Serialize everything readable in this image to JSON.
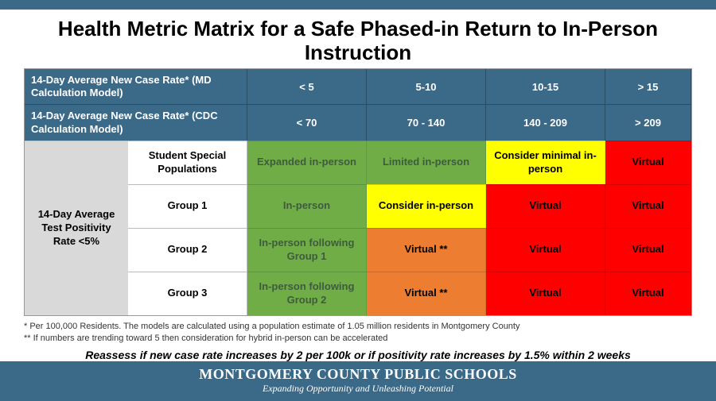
{
  "colors": {
    "brand_blue": "#3b6988",
    "gray": "#d9d9d9",
    "green": "#70ad47",
    "yellow": "#ffff00",
    "orange": "#ed7d31",
    "red": "#ff0000",
    "text_dark": "#3f5b3f",
    "text_black": "#000000"
  },
  "title": "Health Metric Matrix for a Safe Phased-in Return to In-Person Instruction",
  "header_md": {
    "label": "14-Day Average New Case Rate*\n(MD Calculation Model)",
    "cols": [
      "< 5",
      "5-10",
      "10-15",
      "> 15"
    ]
  },
  "header_cdc": {
    "label": "14-Day Average New Case Rate*\n(CDC Calculation Model)",
    "cols": [
      "< 70",
      "70 - 140",
      "140 - 209",
      "> 209"
    ]
  },
  "side_label": "14-Day Average Test Positivity Rate <5%",
  "rows": [
    {
      "group": "Student Special Populations",
      "cells": [
        {
          "text": "Expanded in-person",
          "bg": "#70ad47",
          "fg": "#3f5b3f"
        },
        {
          "text": "Limited in-person",
          "bg": "#70ad47",
          "fg": "#3f5b3f"
        },
        {
          "text": "Consider minimal in-person",
          "bg": "#ffff00",
          "fg": "#000000"
        },
        {
          "text": "Virtual",
          "bg": "#ff0000",
          "fg": "#000000"
        }
      ]
    },
    {
      "group": "Group 1",
      "cells": [
        {
          "text": "In-person",
          "bg": "#70ad47",
          "fg": "#3f5b3f"
        },
        {
          "text": "Consider in-person",
          "bg": "#ffff00",
          "fg": "#000000"
        },
        {
          "text": "Virtual",
          "bg": "#ff0000",
          "fg": "#000000"
        },
        {
          "text": "Virtual",
          "bg": "#ff0000",
          "fg": "#000000"
        }
      ]
    },
    {
      "group": "Group 2",
      "cells": [
        {
          "text": "In-person following Group 1",
          "bg": "#70ad47",
          "fg": "#3f5b3f"
        },
        {
          "text": "Virtual **",
          "bg": "#ed7d31",
          "fg": "#000000"
        },
        {
          "text": "Virtual",
          "bg": "#ff0000",
          "fg": "#000000"
        },
        {
          "text": "Virtual",
          "bg": "#ff0000",
          "fg": "#000000"
        }
      ]
    },
    {
      "group": "Group 3",
      "cells": [
        {
          "text": "In-person following Group 2",
          "bg": "#70ad47",
          "fg": "#3f5b3f"
        },
        {
          "text": "Virtual **",
          "bg": "#ed7d31",
          "fg": "#000000"
        },
        {
          "text": "Virtual",
          "bg": "#ff0000",
          "fg": "#000000"
        },
        {
          "text": "Virtual",
          "bg": "#ff0000",
          "fg": "#000000"
        }
      ]
    }
  ],
  "footnote1": "* Per 100,000 Residents.  The models are calculated using a population estimate of 1.05 million residents in Montgomery County",
  "footnote2": "** If numbers are trending toward 5 then consideration for hybrid in-person can be accelerated",
  "reassess": "Reassess if new case rate increases by 2 per 100k or if positivity rate increases by 1.5% within 2 weeks",
  "brand_name": "MONTGOMERY COUNTY PUBLIC SCHOOLS",
  "brand_tag": "Expanding Opportunity and Unleashing Potential"
}
